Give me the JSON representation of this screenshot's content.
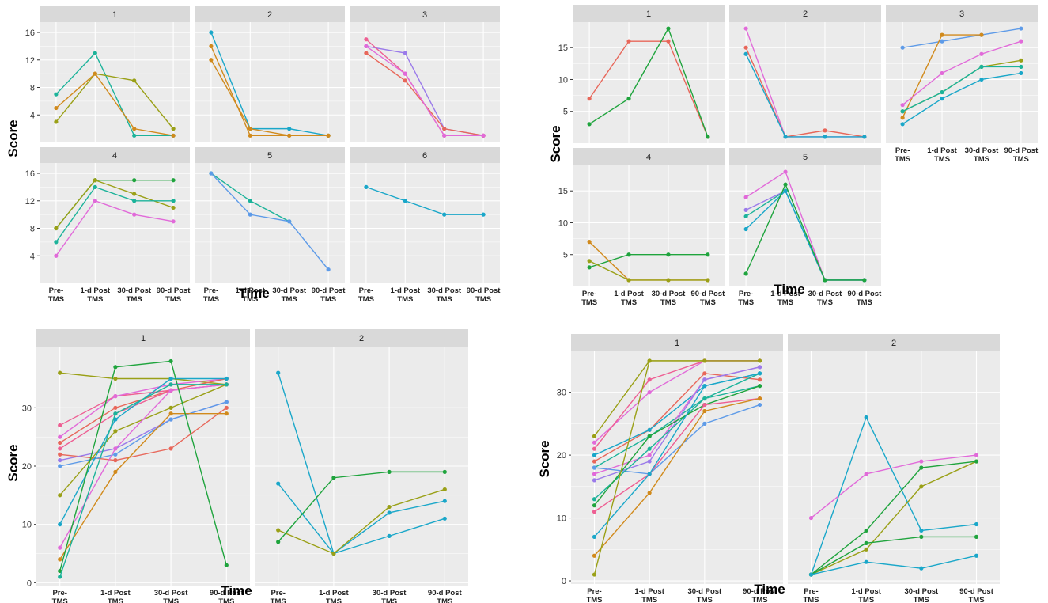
{
  "palette": {
    "red": "#E8675A",
    "orange": "#D18A1C",
    "olive": "#9AA017",
    "green": "#1FA43D",
    "teal": "#1CB39A",
    "cyan": "#1AA7C9",
    "blue": "#5E9BE8",
    "purple": "#9B7BEA",
    "magenta": "#E16AD9",
    "pink": "#EE5F93",
    "strip": "#d9d9d9",
    "panel": "#ebebeb",
    "grid": "#ffffff"
  },
  "x_tick_labels": [
    [
      "Pre-",
      "TMS"
    ],
    [
      "1-d Post",
      "TMS"
    ],
    [
      "30-d Post",
      "TMS"
    ],
    [
      "90-d Post",
      "TMS"
    ]
  ],
  "chart_data": [
    {
      "type": "line",
      "xlabel": "Time",
      "ylabel": "Score",
      "ylim": [
        0,
        17.5
      ],
      "yticks": [
        4,
        8,
        12,
        16
      ],
      "panels": [
        {
          "label": "1",
          "series": [
            {
              "color": "teal",
              "values": [
                7,
                13,
                1,
                1
              ]
            },
            {
              "color": "olive",
              "values": [
                3,
                10,
                9,
                2
              ]
            },
            {
              "color": "orange",
              "values": [
                5,
                10,
                2,
                1
              ]
            }
          ]
        },
        {
          "label": "2",
          "series": [
            {
              "color": "cyan",
              "values": [
                16,
                2,
                2,
                1
              ]
            },
            {
              "color": "orange",
              "values": [
                14,
                1,
                1,
                1
              ]
            },
            {
              "color": "orange",
              "values": [
                12,
                2,
                1,
                1
              ]
            }
          ]
        },
        {
          "label": "3",
          "series": [
            {
              "color": "purple",
              "values": [
                14,
                13,
                2,
                1
              ]
            },
            {
              "color": "pink",
              "values": [
                15,
                10,
                1,
                1
              ]
            },
            {
              "color": "red",
              "values": [
                13,
                9,
                2,
                1
              ]
            },
            {
              "color": "magenta",
              "values": [
                14,
                10,
                1,
                1
              ]
            }
          ]
        },
        {
          "label": "4",
          "series": [
            {
              "color": "green",
              "values": [
                8,
                15,
                15,
                15
              ]
            },
            {
              "color": "olive",
              "values": [
                8,
                15,
                13,
                11
              ]
            },
            {
              "color": "teal",
              "values": [
                6,
                14,
                12,
                12
              ]
            },
            {
              "color": "magenta",
              "values": [
                4,
                12,
                10,
                9
              ]
            }
          ]
        },
        {
          "label": "5",
          "series": [
            {
              "color": "teal",
              "values": [
                16,
                12,
                9,
                null
              ]
            },
            {
              "color": "blue",
              "values": [
                16,
                10,
                9,
                2
              ]
            }
          ]
        },
        {
          "label": "6",
          "series": [
            {
              "color": "cyan",
              "values": [
                14,
                12,
                10,
                10
              ]
            }
          ]
        }
      ]
    },
    {
      "type": "line",
      "xlabel": "Time",
      "ylabel": "Score",
      "ylim": [
        0,
        19
      ],
      "yticks": [
        5,
        10,
        15
      ],
      "panels": [
        {
          "label": "1",
          "series": [
            {
              "color": "red",
              "values": [
                7,
                16,
                16,
                1
              ]
            },
            {
              "color": "green",
              "values": [
                3,
                7,
                18,
                1
              ]
            }
          ]
        },
        {
          "label": "2",
          "series": [
            {
              "color": "magenta",
              "values": [
                18,
                1,
                1,
                1
              ]
            },
            {
              "color": "red",
              "values": [
                15,
                1,
                2,
                1
              ]
            },
            {
              "color": "cyan",
              "values": [
                14,
                1,
                1,
                1
              ]
            }
          ]
        },
        {
          "label": "3",
          "series": [
            {
              "color": "blue",
              "values": [
                15,
                16,
                17,
                18
              ]
            },
            {
              "color": "orange",
              "values": [
                4,
                17,
                17,
                null
              ]
            },
            {
              "color": "magenta",
              "values": [
                6,
                11,
                14,
                16
              ]
            },
            {
              "color": "olive",
              "values": [
                5,
                8,
                12,
                13
              ]
            },
            {
              "color": "teal",
              "values": [
                5,
                8,
                12,
                12
              ]
            },
            {
              "color": "cyan",
              "values": [
                3,
                7,
                10,
                11
              ]
            }
          ]
        },
        {
          "label": "4",
          "series": [
            {
              "color": "green",
              "values": [
                3,
                5,
                5,
                5
              ]
            },
            {
              "color": "orange",
              "values": [
                7,
                1,
                1,
                1
              ]
            },
            {
              "color": "olive",
              "values": [
                4,
                1,
                1,
                1
              ]
            }
          ]
        },
        {
          "label": "5",
          "series": [
            {
              "color": "magenta",
              "values": [
                14,
                18,
                1,
                1
              ]
            },
            {
              "color": "purple",
              "values": [
                12,
                15,
                1,
                1
              ]
            },
            {
              "color": "teal",
              "values": [
                11,
                15,
                1,
                1
              ]
            },
            {
              "color": "cyan",
              "values": [
                9,
                15,
                1,
                1
              ]
            },
            {
              "color": "green",
              "values": [
                2,
                16,
                1,
                1
              ]
            }
          ]
        }
      ]
    },
    {
      "type": "line",
      "xlabel": "Time",
      "ylabel": "Score",
      "ylim": [
        -0.5,
        40.5
      ],
      "yticks": [
        0,
        10,
        20,
        30
      ],
      "panels": [
        {
          "label": "1",
          "series": [
            {
              "color": "olive",
              "values": [
                36,
                35,
                35,
                34
              ]
            },
            {
              "color": "pink",
              "values": [
                27,
                32,
                33,
                34
              ]
            },
            {
              "color": "magenta",
              "values": [
                25,
                32,
                34,
                35
              ]
            },
            {
              "color": "red",
              "values": [
                24,
                30,
                33,
                35
              ]
            },
            {
              "color": "pink",
              "values": [
                23,
                29,
                33,
                34
              ]
            },
            {
              "color": "red",
              "values": [
                22,
                21,
                23,
                30
              ]
            },
            {
              "color": "purple",
              "values": [
                21,
                23,
                28,
                31
              ]
            },
            {
              "color": "blue",
              "values": [
                20,
                22,
                28,
                31
              ]
            },
            {
              "color": "olive",
              "values": [
                15,
                26,
                30,
                34
              ]
            },
            {
              "color": "cyan",
              "values": [
                10,
                28,
                35,
                35
              ]
            },
            {
              "color": "magenta",
              "values": [
                6,
                23,
                33,
                34
              ]
            },
            {
              "color": "orange",
              "values": [
                4,
                19,
                29,
                29
              ]
            },
            {
              "color": "green",
              "values": [
                2,
                37,
                38,
                3
              ]
            },
            {
              "color": "teal",
              "values": [
                1,
                29,
                34,
                34
              ]
            }
          ]
        },
        {
          "label": "2",
          "series": [
            {
              "color": "cyan",
              "values": [
                36,
                5,
                12,
                14
              ]
            },
            {
              "color": "cyan",
              "values": [
                17,
                5,
                8,
                11
              ]
            },
            {
              "color": "olive",
              "values": [
                9,
                5,
                13,
                16
              ]
            },
            {
              "color": "green",
              "values": [
                7,
                18,
                19,
                19
              ]
            }
          ]
        }
      ]
    },
    {
      "type": "line",
      "xlabel": "Time",
      "ylabel": "Score",
      "ylim": [
        -0.5,
        36.5
      ],
      "yticks": [
        0,
        10,
        20,
        30
      ],
      "panels": [
        {
          "label": "1",
          "series": [
            {
              "color": "olive",
              "values": [
                23,
                35,
                35,
                35
              ]
            },
            {
              "color": "magenta",
              "values": [
                22,
                30,
                35,
                35
              ]
            },
            {
              "color": "pink",
              "values": [
                21,
                32,
                35,
                35
              ]
            },
            {
              "color": "red",
              "values": [
                19,
                24,
                33,
                32
              ]
            },
            {
              "color": "cyan",
              "values": [
                20,
                24,
                31,
                33
              ]
            },
            {
              "color": "teal",
              "values": [
                18,
                23,
                29,
                33
              ]
            },
            {
              "color": "magenta",
              "values": [
                17,
                20,
                32,
                34
              ]
            },
            {
              "color": "purple",
              "values": [
                16,
                19,
                32,
                34
              ]
            },
            {
              "color": "blue",
              "values": [
                18,
                17,
                25,
                28
              ]
            },
            {
              "color": "teal",
              "values": [
                13,
                21,
                29,
                31
              ]
            },
            {
              "color": "green",
              "values": [
                12,
                23,
                28,
                31
              ]
            },
            {
              "color": "pink",
              "values": [
                11,
                17,
                28,
                29
              ]
            },
            {
              "color": "cyan",
              "values": [
                7,
                17,
                31,
                33
              ]
            },
            {
              "color": "orange",
              "values": [
                4,
                14,
                27,
                29
              ]
            },
            {
              "color": "olive",
              "values": [
                1,
                35,
                35,
                35
              ]
            }
          ]
        },
        {
          "label": "2",
          "series": [
            {
              "color": "magenta",
              "values": [
                10,
                17,
                19,
                20
              ]
            },
            {
              "color": "cyan",
              "values": [
                1,
                26,
                8,
                9
              ]
            },
            {
              "color": "olive",
              "values": [
                1,
                5,
                15,
                19
              ]
            },
            {
              "color": "green",
              "values": [
                1,
                8,
                18,
                19
              ]
            },
            {
              "color": "green",
              "values": [
                1,
                6,
                7,
                7
              ]
            },
            {
              "color": "cyan",
              "values": [
                1,
                3,
                2,
                4
              ]
            }
          ]
        }
      ]
    }
  ]
}
